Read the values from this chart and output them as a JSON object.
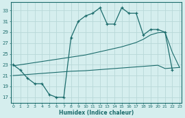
{
  "xlabel": "Humidex (Indice chaleur)",
  "bg_color": "#d5eeee",
  "grid_color": "#b8d8d8",
  "line_color": "#1a6b6b",
  "x_ticks": [
    0,
    1,
    2,
    3,
    4,
    5,
    6,
    7,
    8,
    9,
    10,
    11,
    12,
    13,
    14,
    15,
    16,
    17,
    18,
    19,
    20,
    21,
    22,
    23
  ],
  "y_ticks": [
    17,
    19,
    21,
    23,
    25,
    27,
    29,
    31,
    33
  ],
  "xlim": [
    -0.3,
    23.3
  ],
  "ylim": [
    16.0,
    34.5
  ],
  "line1_x": [
    0,
    1,
    2,
    3,
    4,
    5,
    6,
    7,
    8,
    9,
    10,
    11,
    12,
    13,
    14,
    15,
    16,
    17,
    18,
    19,
    20,
    21,
    22
  ],
  "line1_y": [
    23,
    22,
    20.5,
    19.5,
    19.5,
    17.5,
    17,
    17,
    28,
    31,
    32,
    32.5,
    33.5,
    30.5,
    30.5,
    33.5,
    32.5,
    32.5,
    28.5,
    29.5,
    29.5,
    29,
    22
  ],
  "line2_x": [
    0,
    1,
    2,
    3,
    4,
    5,
    6,
    7,
    8,
    9,
    10,
    11,
    12,
    13,
    14,
    15,
    16,
    17,
    18,
    19,
    20,
    21,
    22,
    23
  ],
  "line2_y": [
    21.0,
    21.1,
    21.2,
    21.3,
    21.4,
    21.5,
    21.6,
    21.7,
    21.8,
    21.85,
    21.9,
    22.0,
    22.1,
    22.2,
    22.3,
    22.4,
    22.5,
    22.6,
    22.7,
    22.8,
    22.9,
    22.3,
    22.4,
    22.5
  ],
  "line3_x": [
    0,
    1,
    2,
    3,
    4,
    5,
    6,
    7,
    8,
    9,
    10,
    11,
    12,
    13,
    14,
    15,
    16,
    17,
    18,
    19,
    20,
    21,
    22,
    23
  ],
  "line3_y": [
    22.8,
    23.0,
    23.2,
    23.4,
    23.6,
    23.8,
    24.0,
    24.2,
    24.4,
    24.6,
    24.8,
    25.1,
    25.4,
    25.7,
    26.0,
    26.3,
    26.7,
    27.1,
    27.7,
    28.5,
    28.9,
    29.0,
    25.3,
    22.5
  ]
}
